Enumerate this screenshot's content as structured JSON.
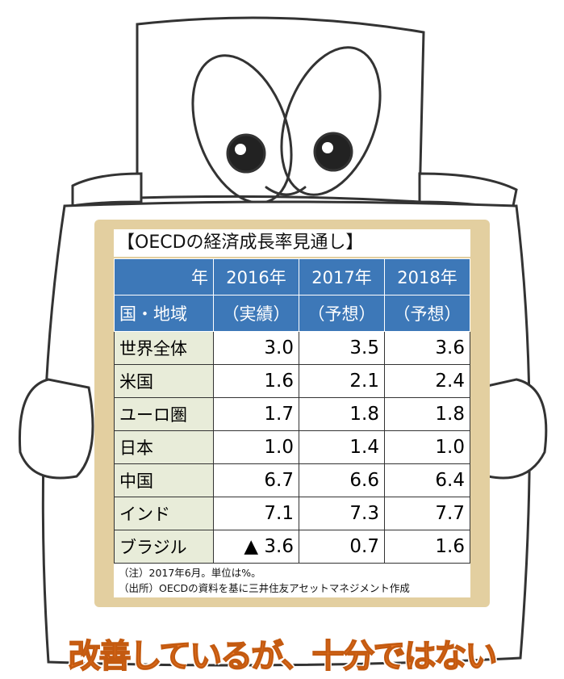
{
  "title": "【OECDの経済成長率見通し】",
  "table": {
    "corner_top": "年",
    "corner_bottom": "国・地域",
    "columns": [
      {
        "year": "2016年",
        "note": "（実績）"
      },
      {
        "year": "2017年",
        "note": "（予想）"
      },
      {
        "year": "2018年",
        "note": "（予想）"
      }
    ],
    "rows": [
      [
        "世界全体",
        "3.0",
        "3.5",
        "3.6"
      ],
      [
        "米国",
        "1.6",
        "2.1",
        "2.4"
      ],
      [
        "ユーロ圏",
        "1.7",
        "1.8",
        "1.8"
      ],
      [
        "日本",
        "1.0",
        "1.4",
        "1.0"
      ],
      [
        "中国",
        "6.7",
        "6.6",
        "6.4"
      ],
      [
        "インド",
        "7.1",
        "7.3",
        "7.7"
      ],
      [
        "ブラジル",
        "▲ 3.6",
        "0.7",
        "1.6"
      ]
    ]
  },
  "notes": [
    "（注）2017年6月。単位は%。",
    "（出所）OECDの資料を基に三井住友アセットマネジメント作成"
  ],
  "slogan": "改善しているが、十分ではない"
}
